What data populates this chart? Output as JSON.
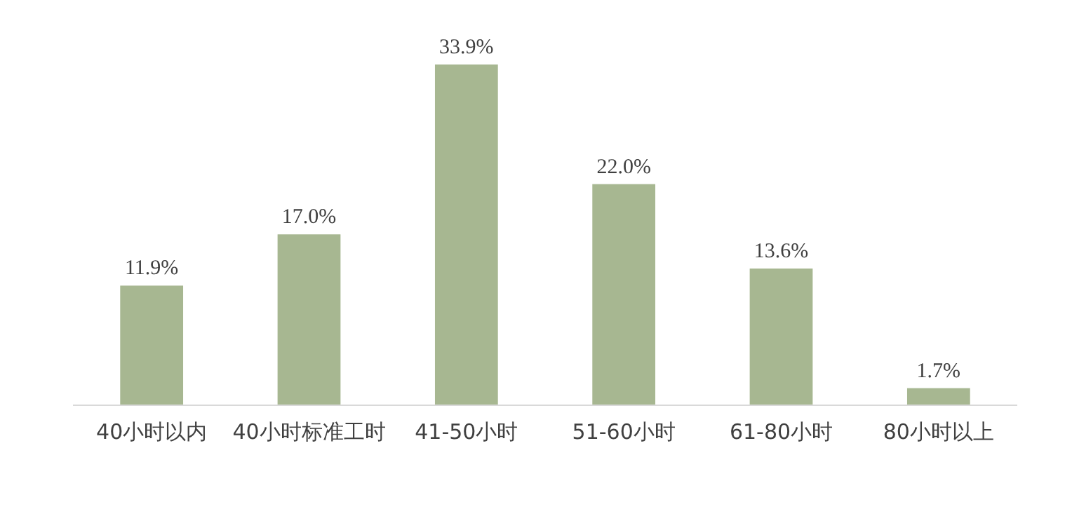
{
  "chart_data": {
    "type": "bar",
    "categories": [
      "40小时以内",
      "40小时标准工时",
      "41-50小时",
      "51-60小时",
      "61-80小时",
      "80小时以上"
    ],
    "values": [
      11.9,
      17.0,
      33.9,
      22.0,
      13.6,
      1.7
    ],
    "value_labels": [
      "11.9%",
      "17.0%",
      "33.9%",
      "22.0%",
      "13.6%",
      "1.7%"
    ],
    "color": "#a7b791"
  }
}
